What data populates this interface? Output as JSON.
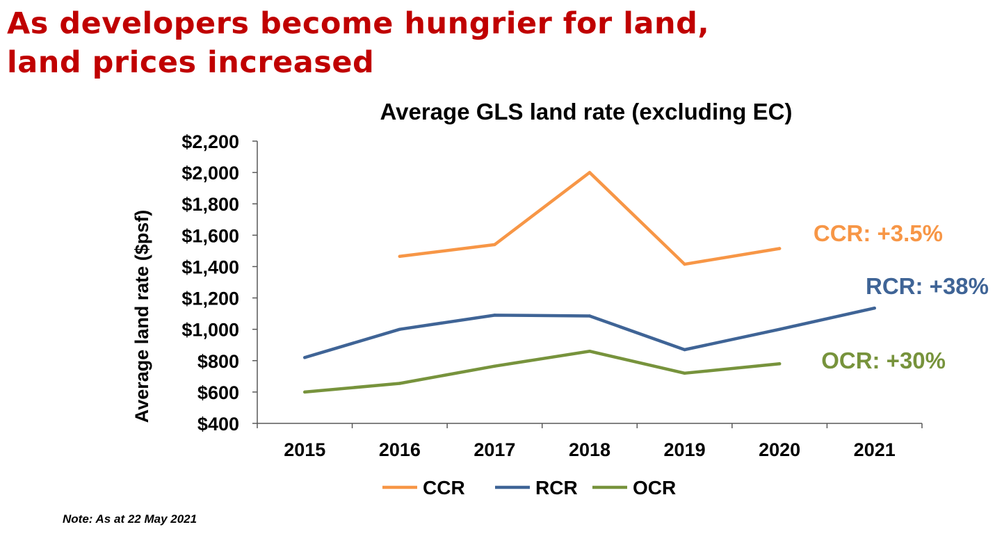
{
  "headline": {
    "line1": "As developers become hungrier for land,",
    "line2": "land prices increased"
  },
  "note": "Note: As at 22 May 2021",
  "colors": {
    "headline": "#c00000",
    "CCR": "#f79646",
    "RCR": "#3f6496",
    "OCR": "#77933c",
    "axis": "#595959"
  },
  "chart_data": {
    "type": "line",
    "title": "Average GLS land rate (excluding EC)",
    "ylabel": "Average land rate ($psf)",
    "xlabel": "",
    "categories": [
      "2015",
      "2016",
      "2017",
      "2018",
      "2019",
      "2020",
      "2021"
    ],
    "ylim": [
      400,
      2200
    ],
    "ytick_step": 200,
    "ytick_labels": [
      "$400",
      "$600",
      "$800",
      "$1,000",
      "$1,200",
      "$1,400",
      "$1,600",
      "$1,800",
      "$2,000",
      "$2,200"
    ],
    "grid": false,
    "legend_position": "bottom",
    "series": [
      {
        "name": "CCR",
        "color": "#f79646",
        "values": [
          null,
          1465,
          1540,
          2000,
          1415,
          1515,
          null
        ],
        "annotation": "CCR: +3.5%"
      },
      {
        "name": "RCR",
        "color": "#3f6496",
        "values": [
          820,
          1000,
          1090,
          1085,
          870,
          1000,
          1135
        ],
        "annotation": "RCR: +38%"
      },
      {
        "name": "OCR",
        "color": "#77933c",
        "values": [
          600,
          655,
          765,
          860,
          720,
          780,
          null
        ],
        "annotation": "OCR: +30%"
      }
    ]
  }
}
